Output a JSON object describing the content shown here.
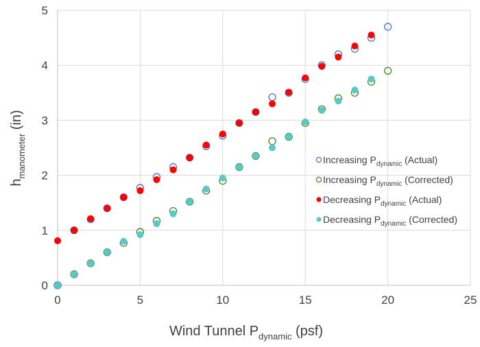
{
  "chart_data": {
    "type": "scatter",
    "xlabel": {
      "main": "Wind Tunnel P",
      "sub": "dynamic",
      "tail": " (psf)"
    },
    "ylabel": {
      "main": "h",
      "sub": "manometer",
      "tail": " (in)"
    },
    "xlim": [
      0,
      25
    ],
    "ylim": [
      0,
      5
    ],
    "xticks": [
      "0",
      "5",
      "10",
      "15",
      "20",
      "25"
    ],
    "yticks": [
      "0",
      "1",
      "2",
      "3",
      "4",
      "5"
    ],
    "grid": true,
    "legend_position": "right",
    "series": [
      {
        "legend": {
          "pre": "Increasing P",
          "sub": "dynamic",
          "post": " (Actual)"
        },
        "marker": "open-circle",
        "color": "#4472C4",
        "x": [
          0,
          1,
          2,
          3,
          4,
          5,
          6,
          7,
          8,
          9,
          10,
          11,
          12,
          13,
          14,
          15,
          16,
          17,
          18,
          19,
          20
        ],
        "y": [
          0,
          1.0,
          1.2,
          1.4,
          1.6,
          1.77,
          1.97,
          2.15,
          2.32,
          2.53,
          2.72,
          2.95,
          3.15,
          3.42,
          3.5,
          3.75,
          4.0,
          4.2,
          4.3,
          4.5,
          4.7
        ]
      },
      {
        "legend": {
          "pre": "Increasing P",
          "sub": "dynamic",
          "post": " (Corrected)"
        },
        "marker": "open-circle",
        "color": "#3A8A1E",
        "x": [
          0,
          1,
          2,
          3,
          4,
          5,
          6,
          7,
          8,
          9,
          10,
          11,
          12,
          13,
          14,
          15,
          16,
          17,
          18,
          19,
          20
        ],
        "y": [
          0,
          0.2,
          0.4,
          0.6,
          0.77,
          0.97,
          1.17,
          1.35,
          1.52,
          1.72,
          1.9,
          2.15,
          2.35,
          2.62,
          2.7,
          2.95,
          3.2,
          3.4,
          3.5,
          3.7,
          3.9
        ]
      },
      {
        "legend": {
          "pre": "Decreasing P",
          "sub": "dynamic",
          "post": " (Actual)"
        },
        "marker": "filled-circle",
        "color": "#FF0000",
        "x": [
          0,
          1,
          2,
          3,
          4,
          5,
          6,
          7,
          8,
          9,
          10,
          11,
          12,
          13,
          14,
          15,
          16,
          17,
          18,
          19
        ],
        "y": [
          0.81,
          1.0,
          1.21,
          1.4,
          1.6,
          1.72,
          1.92,
          2.1,
          2.32,
          2.55,
          2.75,
          2.95,
          3.15,
          3.3,
          3.51,
          3.77,
          3.98,
          4.15,
          4.35,
          4.55
        ]
      },
      {
        "legend": {
          "pre": "Decreasing P",
          "sub": "dynamic",
          "post": " (Corrected)"
        },
        "marker": "filled-circle",
        "color": "#5BC8C8",
        "x": [
          0,
          1,
          2,
          3,
          4,
          5,
          6,
          7,
          8,
          9,
          10,
          11,
          12,
          13,
          14,
          15,
          16,
          17,
          18,
          19
        ],
        "y": [
          0,
          0.2,
          0.4,
          0.6,
          0.8,
          0.92,
          1.12,
          1.3,
          1.52,
          1.75,
          1.95,
          2.15,
          2.35,
          2.5,
          2.7,
          2.97,
          3.18,
          3.35,
          3.55,
          3.75
        ]
      }
    ]
  }
}
